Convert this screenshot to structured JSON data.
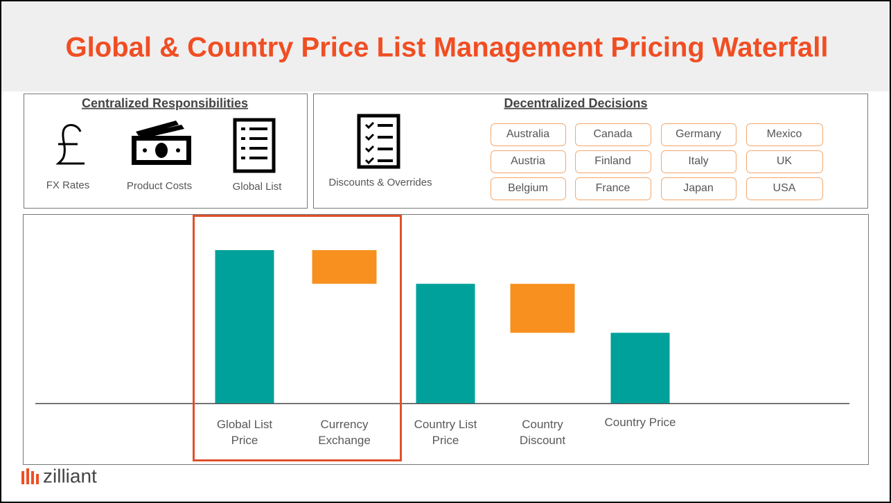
{
  "header": {
    "title": "Global & Country Price List Management Pricing Waterfall"
  },
  "centralized": {
    "title": "Centralized Responsibilities",
    "items": [
      "FX Rates",
      "Product Costs",
      "Global List"
    ]
  },
  "decentralized": {
    "title": "Decentralized Decisions",
    "item": "Discounts & Overrides",
    "countries": [
      "Australia",
      "Austria",
      "Belgium",
      "Canada",
      "Finland",
      "France",
      "Germany",
      "Italy",
      "Japan",
      "Mexico",
      "UK",
      "USA"
    ]
  },
  "logo": "zilliant",
  "chart_data": {
    "type": "waterfall",
    "categories": [
      "Global List Price",
      "Currency Exchange",
      "Country List Price",
      "Country Discount",
      "Country Price"
    ],
    "values": [
      100,
      -22,
      78,
      -32,
      46
    ],
    "totals": [
      true,
      false,
      true,
      false,
      true
    ],
    "colors": {
      "total": "#00a19a",
      "change": "#f7901e"
    }
  }
}
